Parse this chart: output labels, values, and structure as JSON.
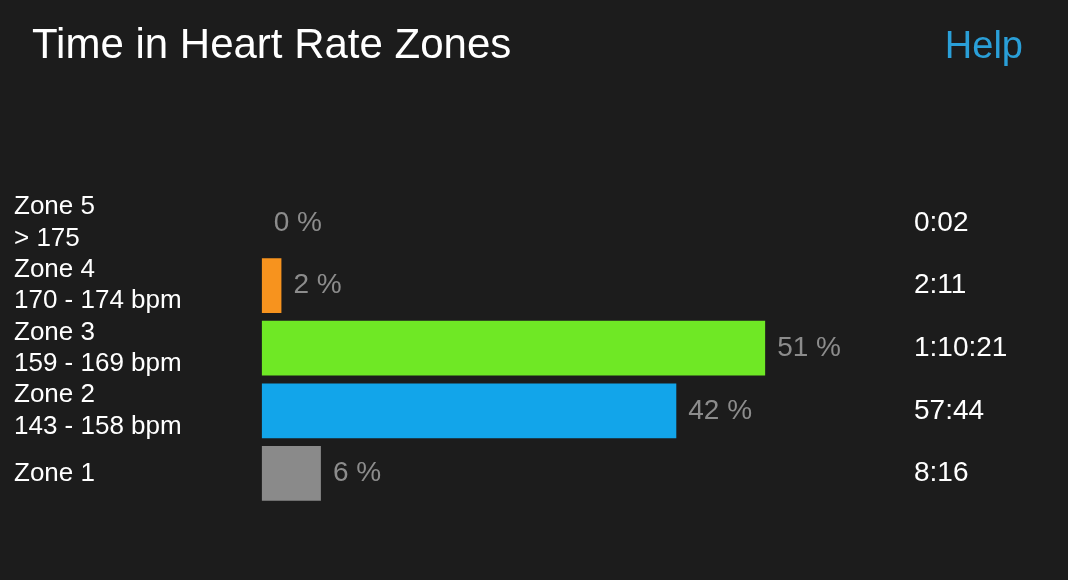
{
  "chart_data": {
    "type": "bar",
    "orientation": "horizontal",
    "title": "Time in Heart Rate Zones",
    "categories": [
      "Zone 5\n> 175",
      "Zone 4\n170 - 174 bpm",
      "Zone 3\n159 - 169 bpm",
      "Zone 2\n143 - 158 bpm",
      "Zone 1"
    ],
    "values": [
      0,
      2,
      51,
      42,
      6
    ],
    "colors": [
      "#d9342b",
      "#f7931e",
      "#6fe825",
      "#12a5ea",
      "#8a8a8a"
    ],
    "value_labels": [
      "0 %",
      "2 %",
      "51 %",
      "42 %",
      "6 %"
    ],
    "annotations": [
      "Help",
      "0:02",
      "2:11",
      "1:10:21",
      "57:44",
      "8:16"
    ],
    "legend": false
  }
}
